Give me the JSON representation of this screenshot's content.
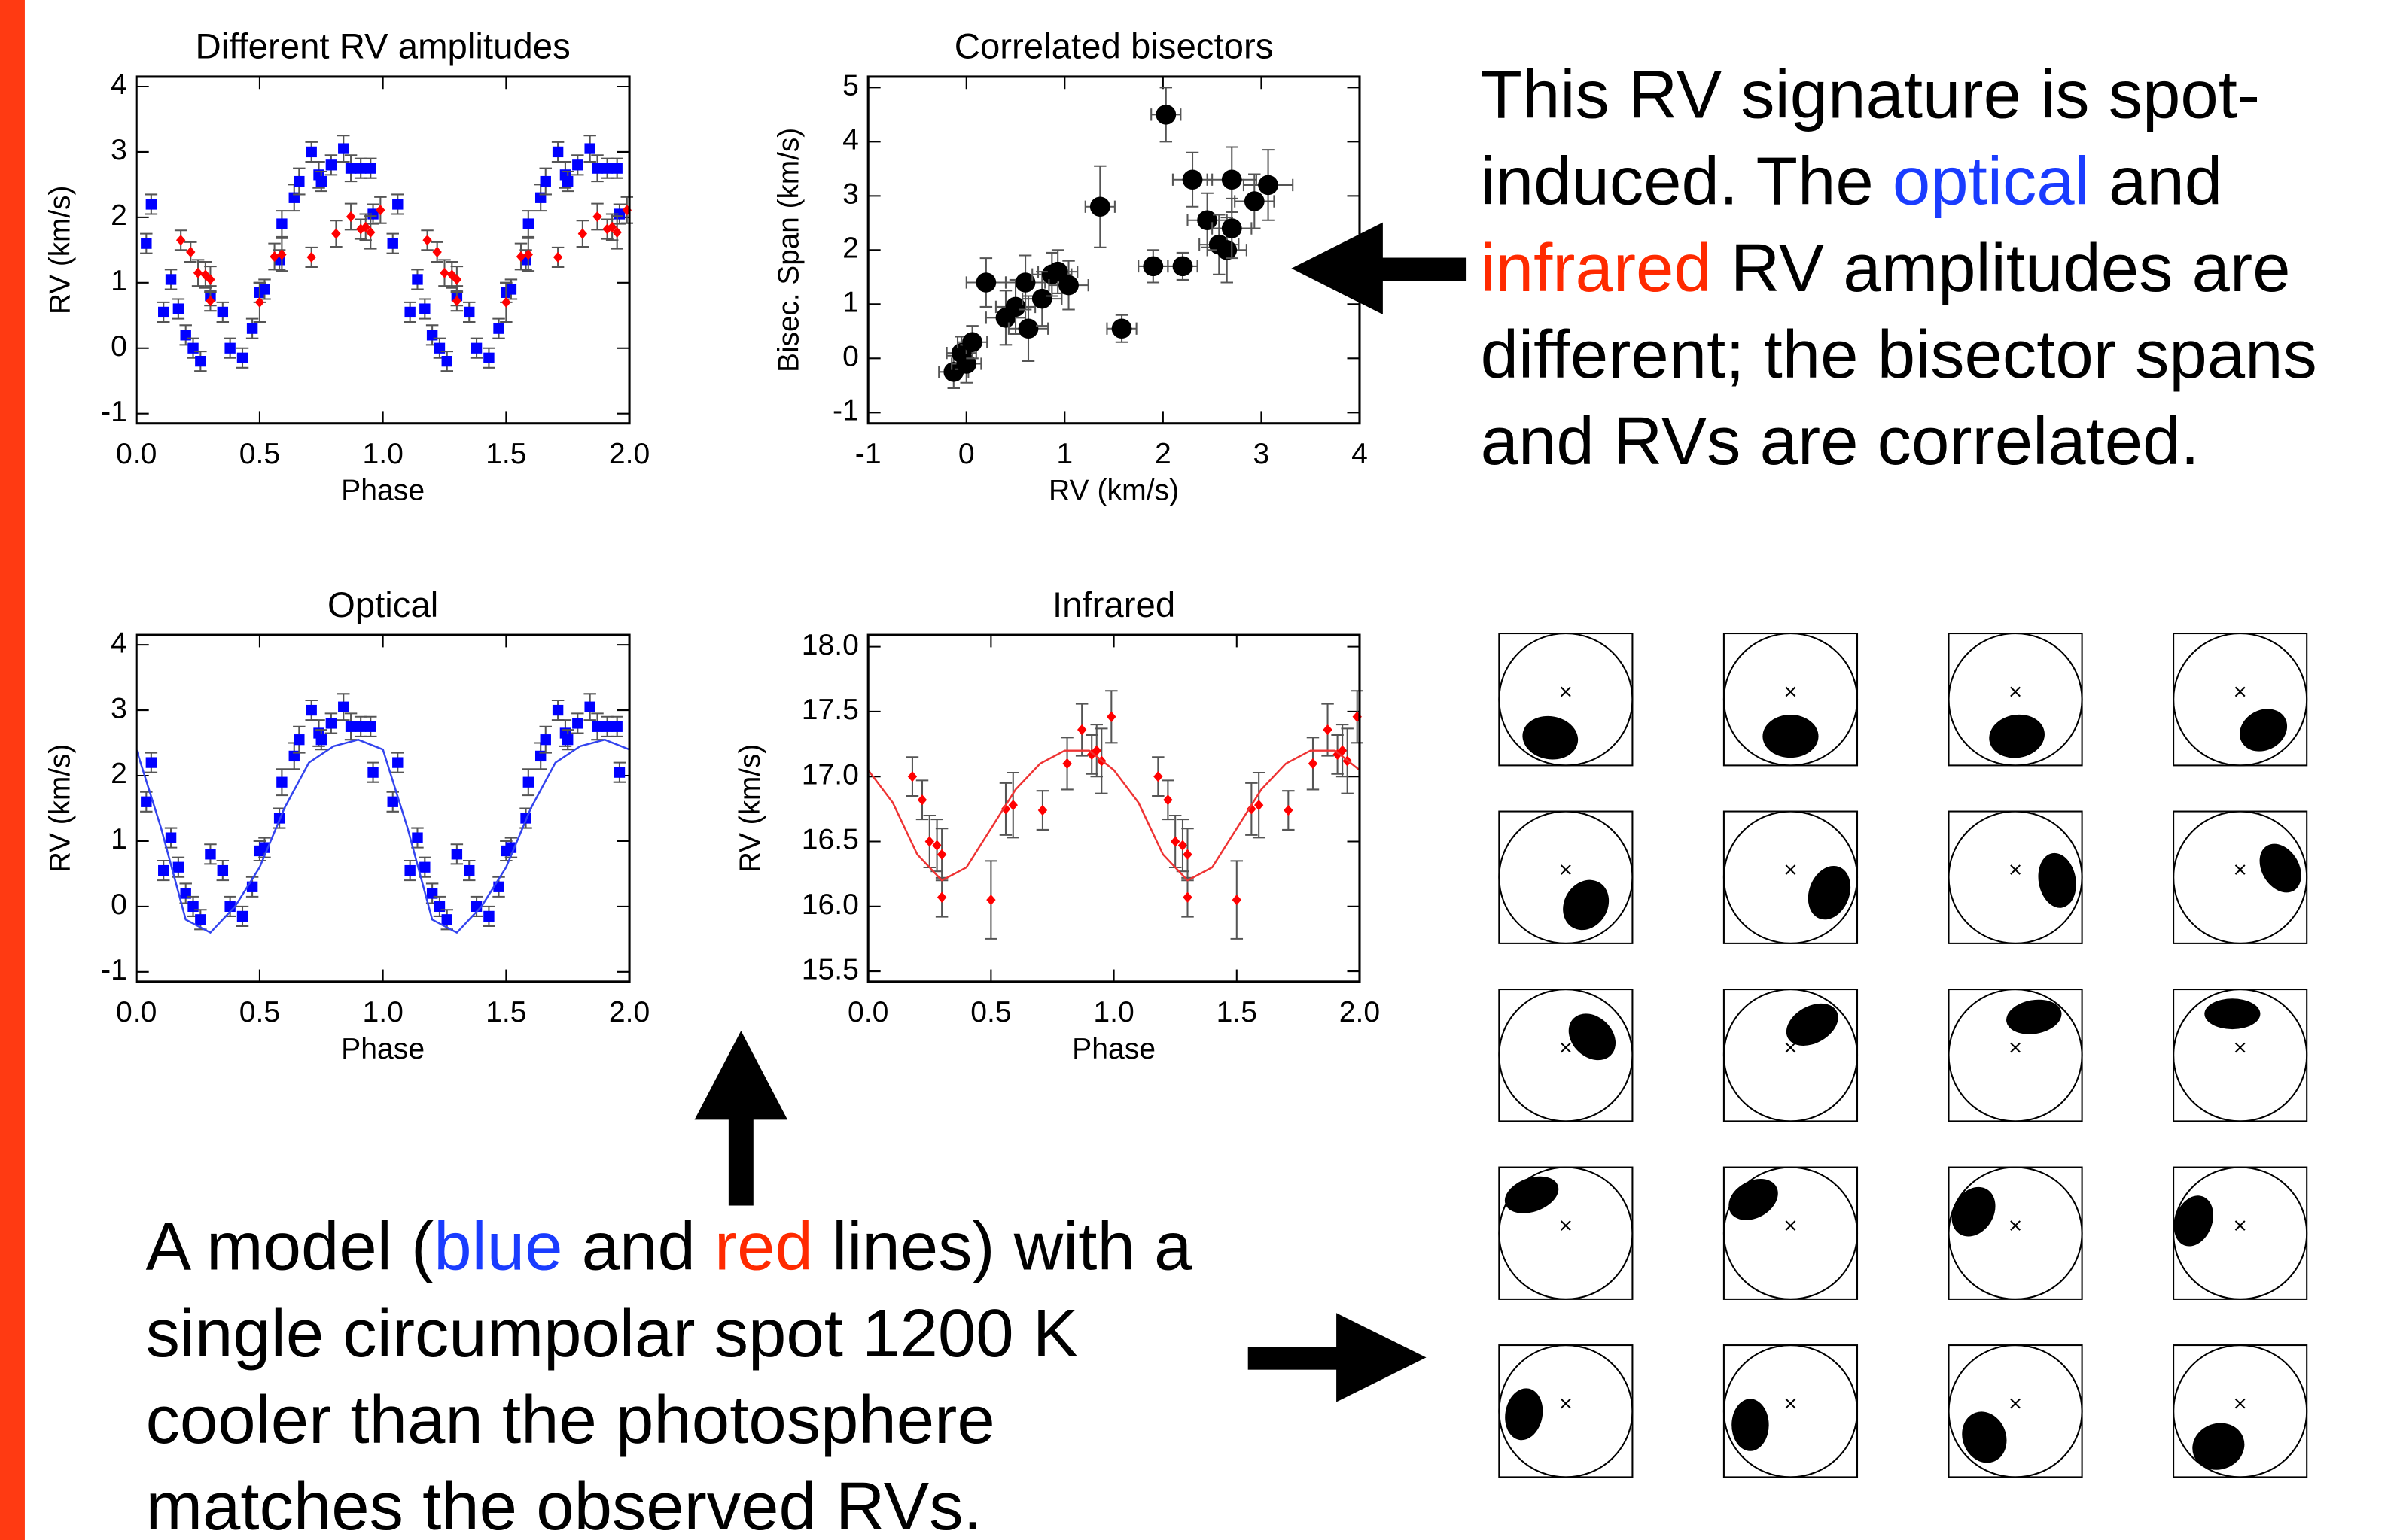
{
  "chart_data": [
    {
      "type": "scatter",
      "title": "Different RV amplitudes",
      "xlabel": "Phase",
      "ylabel": "RV (km/s)",
      "xlim": [
        0,
        2
      ],
      "ylim": [
        -1.15,
        4.15
      ],
      "xticks": [
        {
          "value": 0,
          "label": "0.0"
        },
        {
          "value": 0.5,
          "label": "0.5"
        },
        {
          "value": 1,
          "label": "1.0"
        },
        {
          "value": 1.5,
          "label": "1.5"
        },
        {
          "value": 2,
          "label": "2.0"
        }
      ],
      "yticks": [
        -1,
        0,
        1,
        2,
        3,
        4
      ],
      "series": [
        {
          "color": "#0000ff",
          "marker": "square",
          "x": [
            0.04,
            0.06,
            0.11,
            0.14,
            0.17,
            0.2,
            0.23,
            0.26,
            0.3,
            0.35,
            0.38,
            0.43,
            0.47,
            0.5,
            0.52,
            0.58,
            0.59,
            0.64,
            0.66,
            0.71,
            0.74,
            0.75,
            0.79,
            0.84,
            0.87,
            0.91,
            0.95,
            0.96,
            1.04,
            1.06,
            1.11,
            1.14,
            1.17,
            1.2,
            1.23,
            1.26,
            1.3,
            1.35,
            1.38,
            1.43,
            1.47,
            1.5,
            1.52,
            1.58,
            1.59,
            1.64,
            1.66,
            1.71,
            1.74,
            1.75,
            1.79,
            1.84,
            1.87,
            1.91,
            1.95,
            1.96
          ],
          "values": [
            1.6,
            2.2,
            0.55,
            1.05,
            0.6,
            0.2,
            0.0,
            -0.2,
            0.8,
            0.55,
            0.0,
            -0.15,
            0.3,
            0.85,
            0.9,
            1.35,
            1.9,
            2.3,
            2.55,
            3.0,
            2.65,
            2.55,
            2.8,
            3.05,
            2.75,
            2.75,
            2.75,
            2.05,
            1.6,
            2.2,
            0.55,
            1.05,
            0.6,
            0.2,
            0.0,
            -0.2,
            0.8,
            0.55,
            0.0,
            -0.15,
            0.3,
            0.85,
            0.9,
            1.35,
            1.9,
            2.3,
            2.55,
            3.0,
            2.65,
            2.55,
            2.8,
            3.05,
            2.75,
            2.75,
            2.75,
            2.05
          ],
          "errors": [
            0.15,
            0.15,
            0.15,
            0.15,
            0.15,
            0.15,
            0.15,
            0.15,
            0.15,
            0.15,
            0.15,
            0.15,
            0.15,
            0.15,
            0.15,
            0.15,
            0.2,
            0.2,
            0.2,
            0.15,
            0.2,
            0.15,
            0.15,
            0.2,
            0.2,
            0.15,
            0.15,
            0.15,
            0.15,
            0.15,
            0.15,
            0.15,
            0.15,
            0.15,
            0.15,
            0.15,
            0.15,
            0.15,
            0.15,
            0.15,
            0.15,
            0.15,
            0.15,
            0.15,
            0.2,
            0.2,
            0.2,
            0.15,
            0.2,
            0.15,
            0.15,
            0.2,
            0.2,
            0.15,
            0.15,
            0.15
          ]
        },
        {
          "color": "#ff0000",
          "marker": "diamond",
          "x": [
            0.18,
            0.22,
            0.25,
            0.28,
            0.3,
            0.3,
            0.5,
            0.56,
            0.59,
            0.71,
            0.81,
            0.87,
            0.91,
            0.93,
            0.95,
            0.99,
            1.18,
            1.22,
            1.25,
            1.28,
            1.3,
            1.3,
            1.5,
            1.56,
            1.59,
            1.71,
            1.81,
            1.87,
            1.91,
            1.93,
            1.95,
            1.99
          ],
          "values": [
            1.65,
            1.47,
            1.15,
            1.12,
            1.05,
            0.72,
            0.7,
            1.4,
            1.43,
            1.39,
            1.75,
            2.01,
            1.82,
            1.85,
            1.77,
            2.11,
            1.65,
            1.47,
            1.15,
            1.12,
            1.05,
            0.72,
            0.7,
            1.4,
            1.43,
            1.39,
            1.75,
            2.01,
            1.82,
            1.85,
            1.77,
            2.11
          ],
          "errors": [
            0.15,
            0.15,
            0.2,
            0.2,
            0.2,
            0.15,
            0.3,
            0.2,
            0.25,
            0.15,
            0.2,
            0.2,
            0.15,
            0.2,
            0.25,
            0.2,
            0.15,
            0.15,
            0.2,
            0.2,
            0.2,
            0.15,
            0.3,
            0.2,
            0.25,
            0.15,
            0.2,
            0.2,
            0.15,
            0.2,
            0.25,
            0.2
          ]
        }
      ]
    },
    {
      "type": "scatter",
      "title": "Correlated bisectors",
      "xlabel": "RV (km/s)",
      "ylabel": "Bisec. Span (km/s)",
      "xlim": [
        -1,
        4
      ],
      "ylim": [
        -1.2,
        5.2
      ],
      "xticks": [
        -1,
        0,
        1,
        2,
        3,
        4
      ],
      "yticks": [
        -1,
        0,
        1,
        2,
        3,
        4,
        5
      ],
      "series": [
        {
          "color": "#000000",
          "marker": "circle",
          "x": [
            -0.13,
            -0.05,
            0.0,
            0.06,
            0.2,
            0.4,
            0.5,
            0.6,
            0.63,
            0.77,
            0.87,
            0.93,
            1.04,
            1.36,
            1.58,
            1.9,
            2.03,
            2.2,
            2.3,
            2.45,
            2.57,
            2.65,
            2.7,
            2.7,
            2.93,
            3.07
          ],
          "values": [
            -0.25,
            0.1,
            -0.1,
            0.3,
            1.4,
            0.75,
            0.95,
            1.4,
            0.55,
            1.1,
            1.55,
            1.6,
            1.35,
            2.8,
            0.55,
            1.7,
            4.5,
            1.7,
            3.3,
            2.55,
            2.1,
            2.0,
            3.3,
            2.4,
            2.9,
            3.2
          ],
          "xerrors": [
            0.15,
            0.15,
            0.15,
            0.15,
            0.2,
            0.2,
            0.2,
            0.2,
            0.2,
            0.2,
            0.2,
            0.2,
            0.2,
            0.15,
            0.15,
            0.15,
            0.15,
            0.15,
            0.2,
            0.2,
            0.2,
            0.2,
            0.25,
            0.2,
            0.2,
            0.25
          ],
          "errors": [
            0.3,
            0.3,
            0.35,
            0.3,
            0.45,
            0.5,
            0.5,
            0.5,
            0.6,
            0.5,
            0.4,
            0.4,
            0.45,
            0.75,
            0.25,
            0.3,
            0.5,
            0.25,
            0.5,
            0.5,
            0.55,
            0.6,
            0.6,
            0.55,
            0.5,
            0.65
          ]
        }
      ]
    },
    {
      "type": "scatter",
      "title": "Optical",
      "xlabel": "Phase",
      "ylabel": "RV (km/s)",
      "xlim": [
        0,
        2
      ],
      "ylim": [
        -1.15,
        4.15
      ],
      "xticks": [
        {
          "value": 0,
          "label": "0.0"
        },
        {
          "value": 0.5,
          "label": "0.5"
        },
        {
          "value": 1,
          "label": "1.0"
        },
        {
          "value": 1.5,
          "label": "1.5"
        },
        {
          "value": 2,
          "label": "2.0"
        }
      ],
      "yticks": [
        -1,
        0,
        1,
        2,
        3,
        4
      ],
      "series": [
        {
          "color": "#0000ff",
          "marker": "square",
          "x": [
            0.04,
            0.06,
            0.11,
            0.14,
            0.17,
            0.2,
            0.23,
            0.26,
            0.3,
            0.35,
            0.38,
            0.43,
            0.47,
            0.5,
            0.52,
            0.58,
            0.59,
            0.64,
            0.66,
            0.71,
            0.74,
            0.75,
            0.79,
            0.84,
            0.87,
            0.91,
            0.95,
            0.96,
            1.04,
            1.06,
            1.11,
            1.14,
            1.17,
            1.2,
            1.23,
            1.26,
            1.3,
            1.35,
            1.38,
            1.43,
            1.47,
            1.5,
            1.52,
            1.58,
            1.59,
            1.64,
            1.66,
            1.71,
            1.74,
            1.75,
            1.79,
            1.84,
            1.87,
            1.91,
            1.95,
            1.96
          ],
          "values": [
            1.6,
            2.2,
            0.55,
            1.05,
            0.6,
            0.2,
            0.0,
            -0.2,
            0.8,
            0.55,
            0.0,
            -0.15,
            0.3,
            0.85,
            0.9,
            1.35,
            1.9,
            2.3,
            2.55,
            3.0,
            2.65,
            2.55,
            2.8,
            3.05,
            2.75,
            2.75,
            2.75,
            2.05,
            1.6,
            2.2,
            0.55,
            1.05,
            0.6,
            0.2,
            0.0,
            -0.2,
            0.8,
            0.55,
            0.0,
            -0.15,
            0.3,
            0.85,
            0.9,
            1.35,
            1.9,
            2.3,
            2.55,
            3.0,
            2.65,
            2.55,
            2.8,
            3.05,
            2.75,
            2.75,
            2.75,
            2.05
          ],
          "errors": [
            0.15,
            0.15,
            0.15,
            0.15,
            0.15,
            0.15,
            0.15,
            0.15,
            0.15,
            0.15,
            0.15,
            0.15,
            0.15,
            0.15,
            0.15,
            0.15,
            0.2,
            0.2,
            0.2,
            0.15,
            0.2,
            0.15,
            0.15,
            0.2,
            0.2,
            0.15,
            0.15,
            0.15,
            0.15,
            0.15,
            0.15,
            0.15,
            0.15,
            0.15,
            0.15,
            0.15,
            0.15,
            0.15,
            0.15,
            0.15,
            0.15,
            0.15,
            0.15,
            0.15,
            0.2,
            0.2,
            0.2,
            0.15,
            0.2,
            0.15,
            0.15,
            0.2,
            0.2,
            0.15,
            0.15,
            0.15
          ]
        },
        {
          "color": "#3344ee",
          "marker": "line",
          "x": [
            0,
            0.1,
            0.2,
            0.3,
            0.4,
            0.5,
            0.6,
            0.7,
            0.8,
            0.9,
            1.0,
            1.1,
            1.2,
            1.3,
            1.4,
            1.5,
            1.6,
            1.7,
            1.8,
            1.9,
            2.0
          ],
          "values": [
            2.4,
            1.2,
            -0.2,
            -0.4,
            0.0,
            0.6,
            1.5,
            2.2,
            2.45,
            2.55,
            2.4,
            1.2,
            -0.2,
            -0.4,
            0.0,
            0.6,
            1.5,
            2.2,
            2.45,
            2.55,
            2.4
          ]
        }
      ]
    },
    {
      "type": "scatter",
      "title": "Infrared",
      "xlabel": "Phase",
      "ylabel": "RV (km/s)",
      "xlim": [
        0,
        2
      ],
      "ylim": [
        15.42,
        18.09
      ],
      "xticks": [
        {
          "value": 0,
          "label": "0.0"
        },
        {
          "value": 0.5,
          "label": "0.5"
        },
        {
          "value": 1,
          "label": "1.0"
        },
        {
          "value": 1.5,
          "label": "1.5"
        },
        {
          "value": 2,
          "label": "2.0"
        }
      ],
      "yticks": [
        {
          "value": 15.5,
          "label": "15.5"
        },
        {
          "value": 16,
          "label": "16.0"
        },
        {
          "value": 16.5,
          "label": "16.5"
        },
        {
          "value": 17,
          "label": "17.0"
        },
        {
          "value": 17.5,
          "label": "17.5"
        },
        {
          "value": 18,
          "label": "18.0"
        }
      ],
      "series": [
        {
          "color": "#ff0000",
          "marker": "diamond",
          "x": [
            0.18,
            0.22,
            0.25,
            0.28,
            0.3,
            0.3,
            0.5,
            0.56,
            0.59,
            0.71,
            0.81,
            0.87,
            0.91,
            0.93,
            0.95,
            0.99,
            1.18,
            1.22,
            1.25,
            1.28,
            1.3,
            1.3,
            1.5,
            1.56,
            1.59,
            1.71,
            1.81,
            1.87,
            1.91,
            1.93,
            1.95,
            1.99
          ],
          "values": [
            17.0,
            16.82,
            16.5,
            16.47,
            16.4,
            16.07,
            16.05,
            16.75,
            16.78,
            16.74,
            17.1,
            17.36,
            17.17,
            17.2,
            17.12,
            17.46,
            17.0,
            16.82,
            16.5,
            16.47,
            16.4,
            16.07,
            16.05,
            16.75,
            16.78,
            16.74,
            17.1,
            17.36,
            17.17,
            17.2,
            17.12,
            17.46
          ],
          "errors": [
            0.15,
            0.15,
            0.2,
            0.2,
            0.2,
            0.15,
            0.3,
            0.2,
            0.25,
            0.15,
            0.2,
            0.2,
            0.15,
            0.2,
            0.25,
            0.2,
            0.15,
            0.15,
            0.2,
            0.2,
            0.2,
            0.15,
            0.3,
            0.2,
            0.25,
            0.15,
            0.2,
            0.2,
            0.15,
            0.2,
            0.25,
            0.2
          ]
        },
        {
          "color": "#ee3333",
          "marker": "line",
          "x": [
            0,
            0.1,
            0.2,
            0.3,
            0.4,
            0.5,
            0.6,
            0.7,
            0.8,
            0.9,
            1.0,
            1.1,
            1.2,
            1.3,
            1.4,
            1.5,
            1.6,
            1.7,
            1.8,
            1.9,
            2.0
          ],
          "values": [
            17.05,
            16.8,
            16.4,
            16.2,
            16.3,
            16.6,
            16.9,
            17.1,
            17.2,
            17.2,
            17.05,
            16.8,
            16.4,
            16.2,
            16.3,
            16.6,
            16.9,
            17.1,
            17.2,
            17.2,
            17.05
          ]
        }
      ]
    }
  ],
  "notes": {
    "right": [
      [
        {
          "text": "This RV signature is spot-"
        }
      ],
      [
        {
          "text": "induced. The "
        },
        {
          "text": "optical",
          "color": "#1a3cff"
        },
        {
          "text": " and"
        }
      ],
      [
        {
          "text": "infrared",
          "color": "#ff2a00"
        },
        {
          "text": " RV amplitudes are"
        }
      ],
      [
        {
          "text": "different; the bisector spans"
        }
      ],
      [
        {
          "text": "and RVs are correlated."
        }
      ]
    ],
    "bottom": [
      [
        {
          "text": "A model ("
        },
        {
          "text": "blue",
          "color": "#1a3cff"
        },
        {
          "text": " and "
        },
        {
          "text": "red",
          "color": "#ff2a00"
        },
        {
          "text": " lines) with a"
        }
      ],
      [
        {
          "text": "single circumpolar spot 1200 K"
        }
      ],
      [
        {
          "text": "cooler than the photosphere"
        }
      ],
      [
        {
          "text": "matches the observed RVs."
        }
      ]
    ]
  }
}
